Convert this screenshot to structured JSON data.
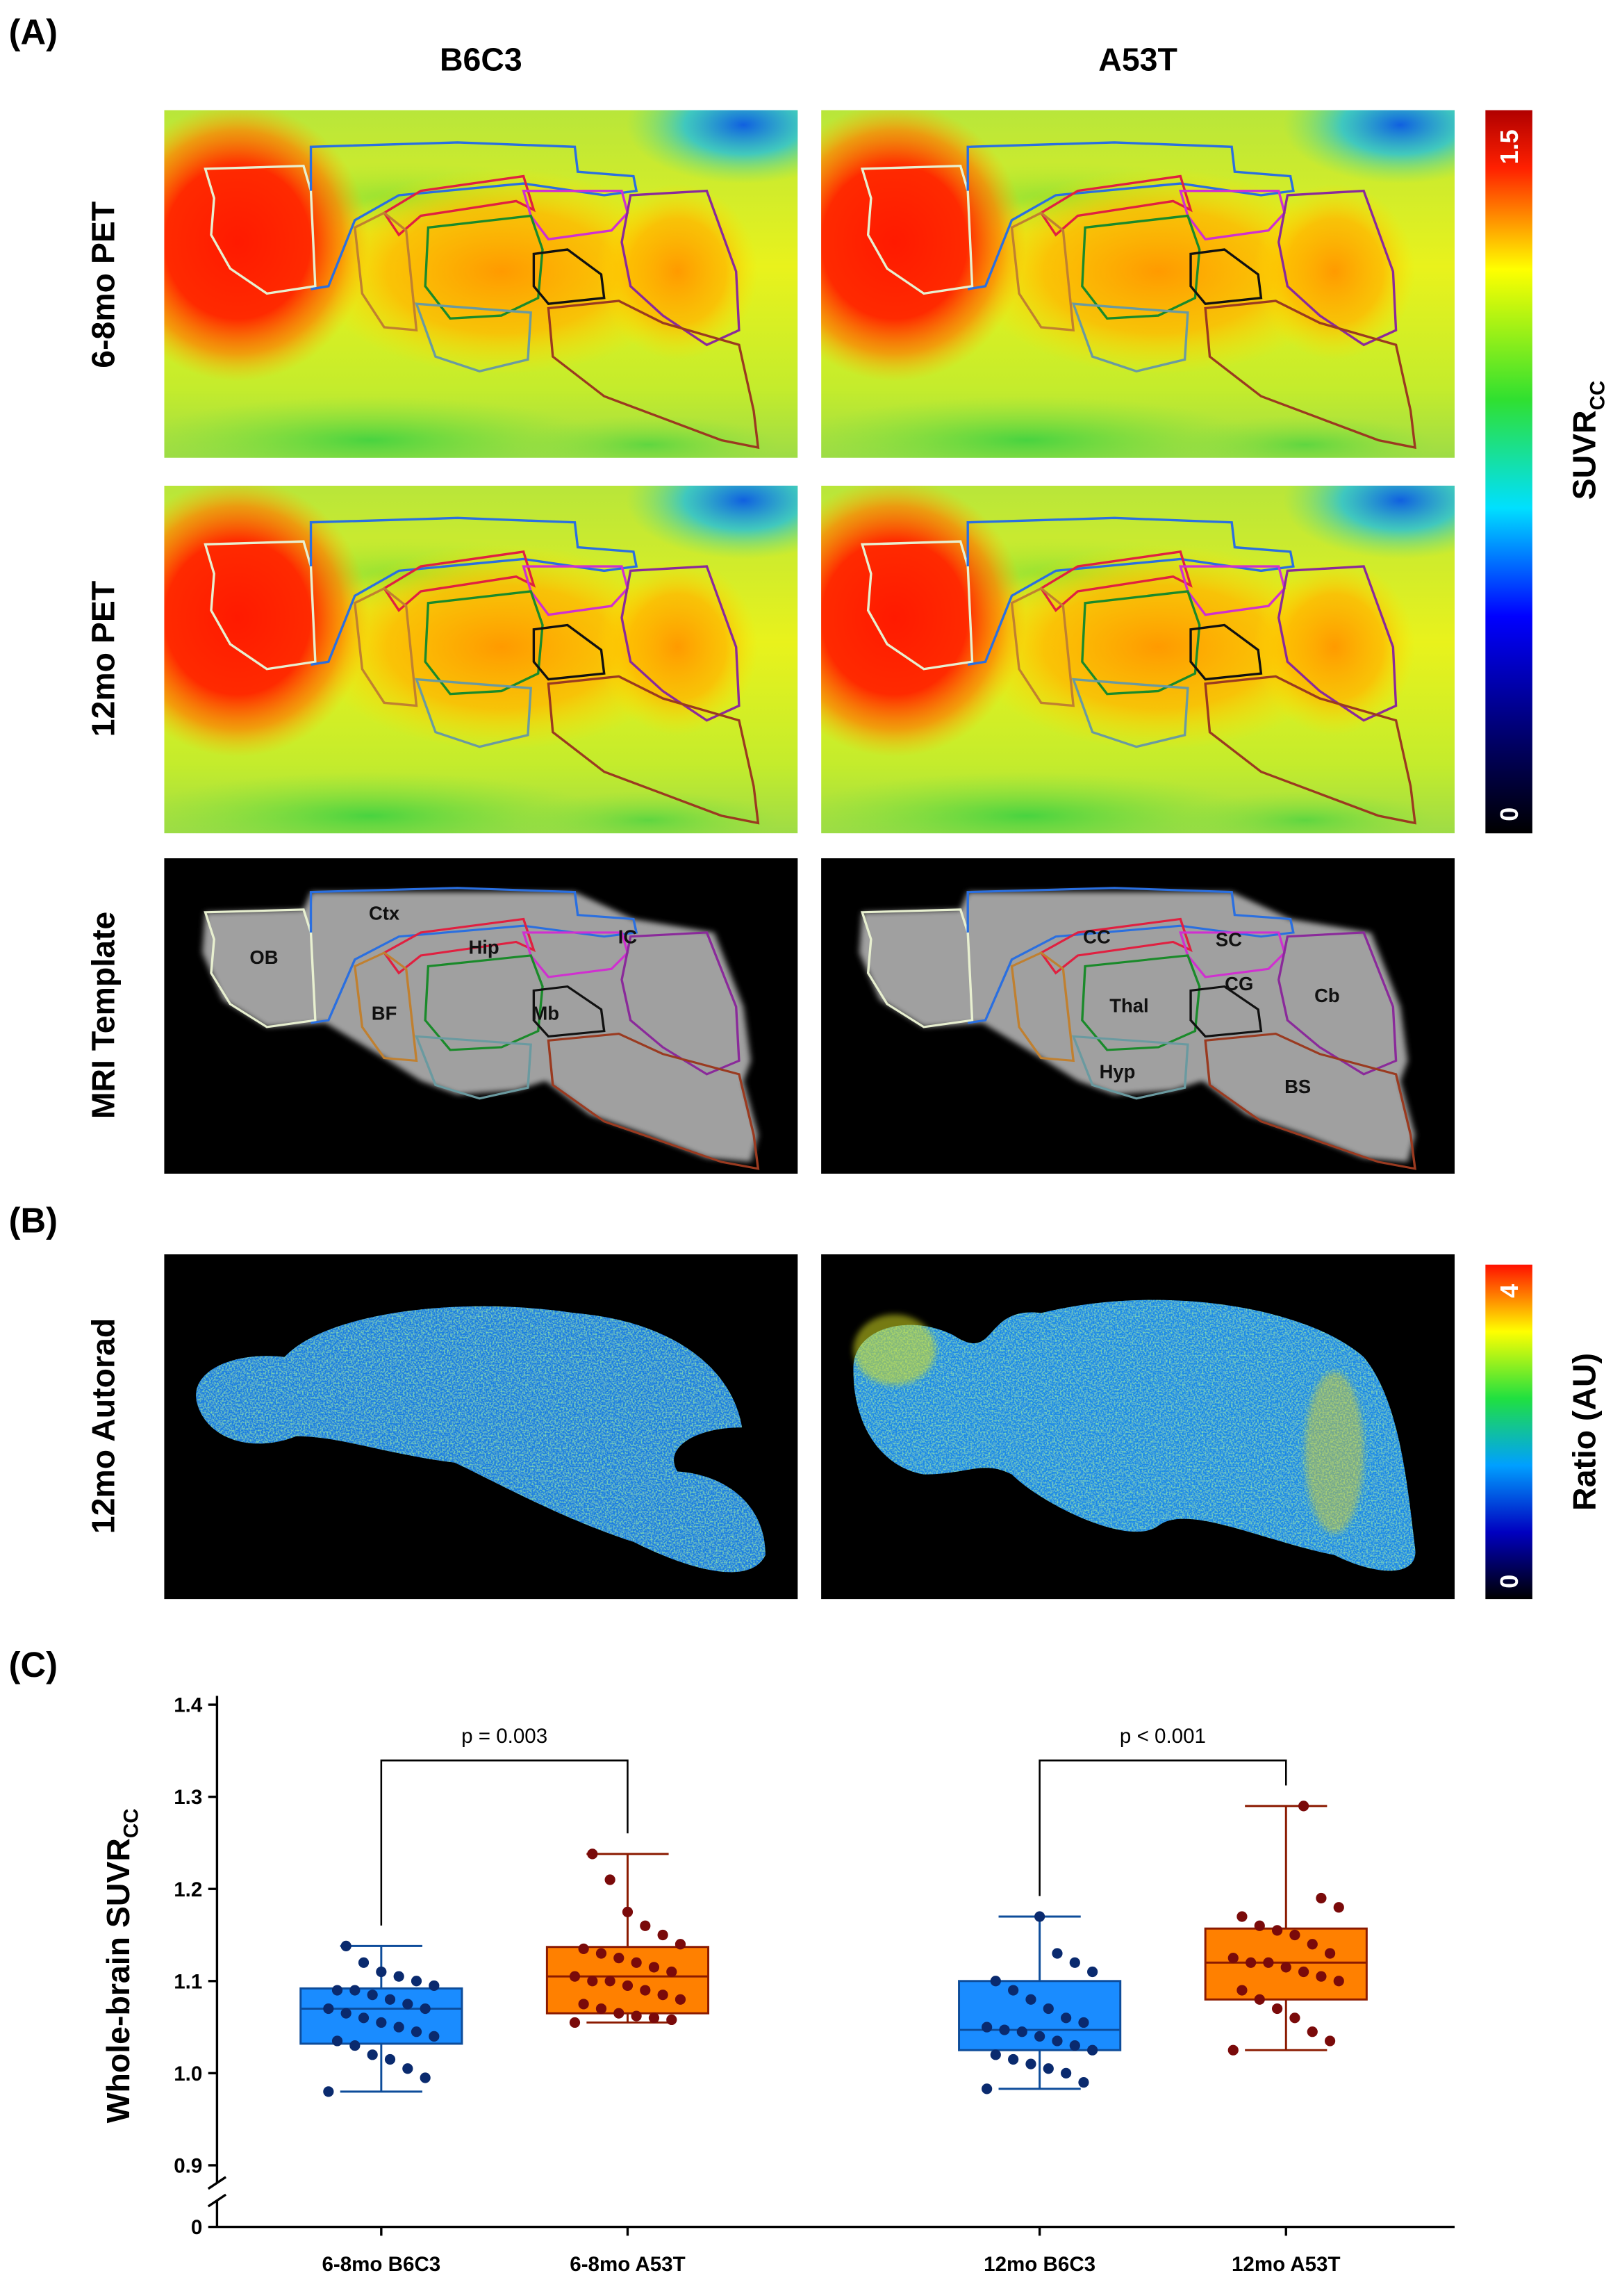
{
  "panels": [
    "(A)",
    "(B)",
    "(C)"
  ],
  "columns": [
    "B6C3",
    "A53T"
  ],
  "rows": [
    "6-8mo PET",
    "12mo PET",
    "MRI Template",
    "12mo Autorad"
  ],
  "colorbar_pet": {
    "label": "SUVR",
    "label_sub": "CC",
    "ticks": [
      0,
      1.5
    ]
  },
  "colorbar_autorad": {
    "label": "Ratio (AU)",
    "ticks": [
      0,
      4
    ]
  },
  "regions": {
    "left": [
      "OB",
      "Ctx",
      "Hip",
      "IC",
      "BF",
      "Mb"
    ],
    "right": [
      "CC",
      "SC",
      "Thal",
      "CG",
      "Cb",
      "Hyp",
      "BS"
    ]
  },
  "chart_data": {
    "type": "box",
    "y_label": "Whole-brain SUVR",
    "y_label_sub": "CC",
    "categories": [
      "6-8mo B6C3",
      "6-8mo A53T",
      "12mo B6C3",
      "12mo A53T"
    ],
    "colors": [
      "#1a8cff",
      "#ff8000",
      "#1a8cff",
      "#ff8000"
    ],
    "edge_colors": [
      "#0d4c9a",
      "#8b1a00",
      "#0d4c9a",
      "#8b1a00"
    ],
    "point_colors": [
      "#0a2a6e",
      "#7a0a0a",
      "#0a2a6e",
      "#7a0a0a"
    ],
    "boxes": [
      {
        "min": 0.98,
        "q1": 1.032,
        "median": 1.07,
        "q3": 1.092,
        "max": 1.138,
        "points": [
          0.98,
          0.995,
          1.005,
          1.015,
          1.02,
          1.03,
          1.035,
          1.04,
          1.045,
          1.05,
          1.055,
          1.06,
          1.065,
          1.07,
          1.07,
          1.075,
          1.08,
          1.085,
          1.09,
          1.09,
          1.095,
          1.1,
          1.105,
          1.11,
          1.12,
          1.138
        ]
      },
      {
        "min": 1.055,
        "q1": 1.065,
        "median": 1.105,
        "q3": 1.137,
        "max": 1.238,
        "points": [
          1.055,
          1.058,
          1.06,
          1.062,
          1.065,
          1.07,
          1.075,
          1.08,
          1.085,
          1.09,
          1.095,
          1.1,
          1.1,
          1.105,
          1.11,
          1.115,
          1.12,
          1.125,
          1.13,
          1.135,
          1.14,
          1.15,
          1.16,
          1.175,
          1.21,
          1.238
        ]
      },
      {
        "min": 0.983,
        "q1": 1.025,
        "median": 1.047,
        "q3": 1.1,
        "max": 1.17,
        "points": [
          0.983,
          0.99,
          1.0,
          1.005,
          1.01,
          1.015,
          1.02,
          1.025,
          1.03,
          1.035,
          1.04,
          1.045,
          1.047,
          1.05,
          1.055,
          1.06,
          1.07,
          1.08,
          1.09,
          1.1,
          1.11,
          1.12,
          1.13,
          1.17
        ]
      },
      {
        "min": 1.025,
        "q1": 1.08,
        "median": 1.12,
        "q3": 1.157,
        "max": 1.29,
        "points": [
          1.025,
          1.035,
          1.045,
          1.06,
          1.07,
          1.08,
          1.09,
          1.1,
          1.105,
          1.11,
          1.115,
          1.12,
          1.12,
          1.125,
          1.13,
          1.14,
          1.15,
          1.155,
          1.16,
          1.17,
          1.18,
          1.19,
          1.29
        ]
      }
    ],
    "annotations": [
      "p = 0.003",
      "p < 0.001"
    ],
    "ylim": [
      0.9,
      1.4
    ],
    "yticks": [
      0,
      0.9,
      {
        "value": 1,
        "label": "1.0"
      },
      1.1,
      1.2,
      1.3,
      1.4
    ],
    "axis_break": true
  }
}
